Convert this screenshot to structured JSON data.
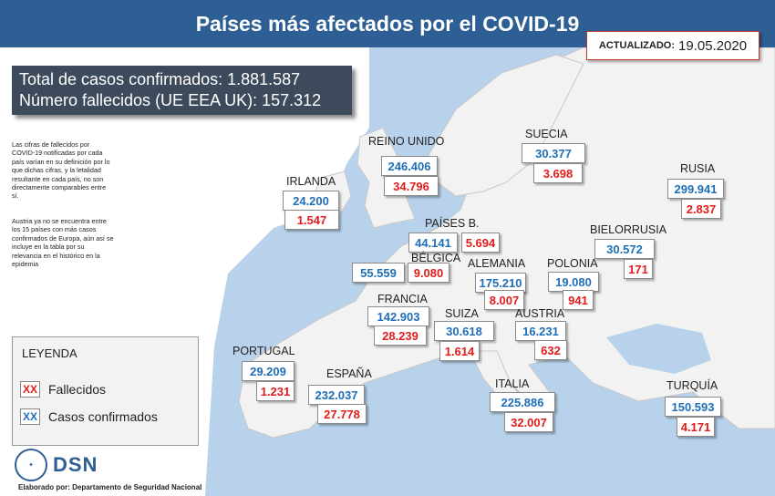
{
  "title": "Países más afectados por el COVID-19",
  "updated": {
    "label": "ACTUALIZADO:",
    "date": "19.05.2020"
  },
  "totals": {
    "line1": "Total de casos confirmados:  1.881.587",
    "line2": "Número fallecidos (UE EEA UK): 157.312"
  },
  "notes": {
    "note1": "Las cifras de fallecidos por COVID-19 notificadas por cada país varían en su definición por lo que dichas cifras, y la letalidad resultante en cada país, no son directamente comparables entre sí.",
    "note2": "Austria ya no se encuentra entre los 15 países con más casos confirmados de Europa, aún así se incluye en la tabla por su relevancia en el histórico en la epidemia"
  },
  "legend": {
    "title": "LEYENDA",
    "deaths_marker": "XX",
    "deaths_label": "Fallecidos",
    "cases_marker": "XX",
    "cases_label": "Casos confirmados"
  },
  "colors": {
    "confirmed": "#1f6fb8",
    "deaths": "#e31b1b",
    "header": "#2e5f94",
    "sea": "#b7d2ea",
    "land": "#f2f2f2"
  },
  "countries": [
    {
      "name": "REINO UNIDO",
      "confirmed": "246.406",
      "deaths": "34.796"
    },
    {
      "name": "SUECIA",
      "confirmed": "30.377",
      "deaths": "3.698"
    },
    {
      "name": "RUSIA",
      "confirmed": "299.941",
      "deaths": "2.837"
    },
    {
      "name": "IRLANDA",
      "confirmed": "24.200",
      "deaths": "1.547"
    },
    {
      "name": "PAÍSES B.",
      "confirmed": "44.141",
      "deaths": "5.694"
    },
    {
      "name": "BIELORRUSIA",
      "confirmed": "30.572",
      "deaths": "171"
    },
    {
      "name": "BÉLGICA",
      "confirmed": "55.559",
      "deaths": "9.080"
    },
    {
      "name": "ALEMANIA",
      "confirmed": "175.210",
      "deaths": "8.007"
    },
    {
      "name": "POLONIA",
      "confirmed": "19.080",
      "deaths": "941"
    },
    {
      "name": "FRANCIA",
      "confirmed": "142.903",
      "deaths": "28.239"
    },
    {
      "name": "SUIZA",
      "confirmed": "30.618",
      "deaths": "1.614"
    },
    {
      "name": "AUSTRIA",
      "confirmed": "16.231",
      "deaths": "632"
    },
    {
      "name": "PORTUGAL",
      "confirmed": "29.209",
      "deaths": "1.231"
    },
    {
      "name": "ESPAÑA",
      "confirmed": "232.037",
      "deaths": "27.778"
    },
    {
      "name": "ITALIA",
      "confirmed": "225.886",
      "deaths": "32.007"
    },
    {
      "name": "TURQUÍA",
      "confirmed": "150.593",
      "deaths": "4.171"
    }
  ],
  "footer": {
    "logo_text": "DSN",
    "credit": "Elaborado por: Departamento de Seguridad Nacional"
  }
}
